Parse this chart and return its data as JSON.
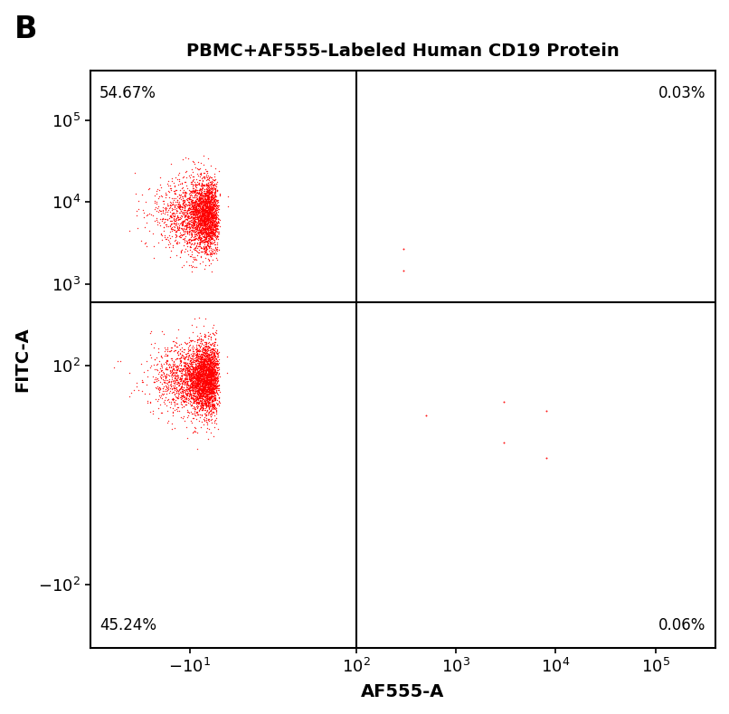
{
  "title": "PBMC+AF555-Labeled Human CD19 Protein",
  "xlabel": "AF555-A",
  "ylabel": "FITC-A",
  "label_B": "B",
  "quadrant_labels": {
    "UL": "54.67%",
    "UR": "0.03%",
    "LL": "45.24%",
    "LR": "0.06%"
  },
  "dot_color": "#ff0000",
  "background_color": "#ffffff",
  "x_ticks": [
    -10,
    100,
    1000,
    10000,
    100000
  ],
  "x_tick_labels": [
    "$-10^{1}$",
    "$10^{2}$",
    "$10^{3}$",
    "$10^{4}$",
    "$10^{5}$"
  ],
  "y_ticks": [
    -100,
    100,
    1000,
    10000,
    100000
  ],
  "y_tick_labels": [
    "$-10^{2}$",
    "$10^{2}$",
    "$10^{3}$",
    "$10^{4}$",
    "$10^{5}$"
  ],
  "gate_x_val": 100,
  "gate_y_val": 600,
  "xlim": [
    -100,
    400000
  ],
  "ylim": [
    -600,
    400000
  ],
  "cluster1_n": 3000,
  "cluster1_x_mean": -0.8,
  "cluster1_x_std": 0.25,
  "cluster1_y_mean": 3.85,
  "cluster1_y_std": 0.22,
  "cluster2_n": 3500,
  "cluster2_x_mean": -0.8,
  "cluster2_x_std": 0.25,
  "cluster2_y_mean": 1.85,
  "cluster2_y_std": 0.22,
  "scatter_n": 8,
  "linthresh_x": 10,
  "linthresh_y": 10,
  "linscale": 0.3
}
